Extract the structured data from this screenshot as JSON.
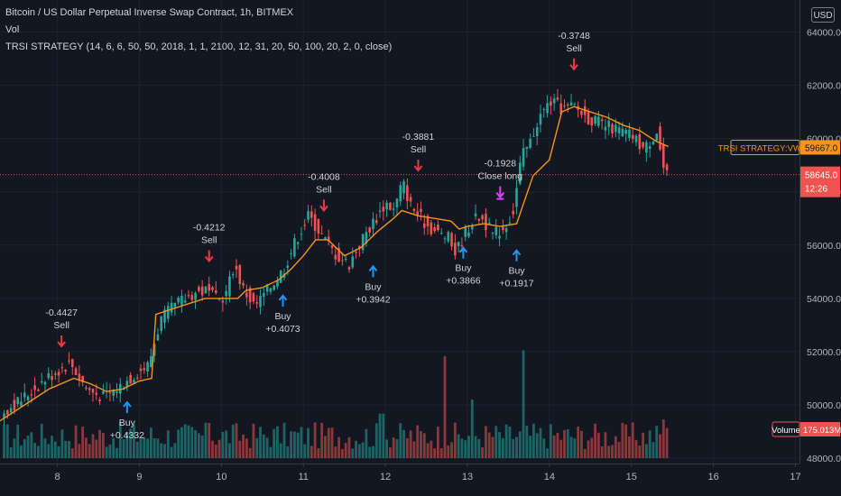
{
  "header": {
    "symbol_title": "Bitcoin / US Dollar Perpetual Inverse Swap Contract, 1h, BITMEX",
    "volume_label": "Vol",
    "strategy_label": "TRSI STRATEGY (14, 6, 6, 50, 50, 2018, 1, 1, 2100, 12, 31, 20, 50, 100, 20, 2, 0, close)",
    "currency_button": "USD"
  },
  "price_tags": {
    "vwap_label": "TRSI STRATEGY:VWAP",
    "vwap_value": "59667.0",
    "last_price": "58645.0",
    "countdown": "12:26",
    "volume_label": "Volume",
    "volume_value": "175.013M"
  },
  "colors": {
    "background": "#131722",
    "up": "#26a69a",
    "down": "#ef5350",
    "vwap": "#f7931a",
    "buy_arrow": "#2196f3",
    "sell_arrow": "#f23645",
    "close_arrow": "#e040fb"
  },
  "chart_data": {
    "type": "candlestick",
    "x_ticks": [
      "8",
      "9",
      "10",
      "11",
      "12",
      "13",
      "14",
      "15",
      "16",
      "17"
    ],
    "x_ticks_day": [
      8,
      9,
      10,
      11,
      12,
      13,
      14,
      15,
      16,
      17
    ],
    "y_ticks": [
      "48000.0",
      "50000.0",
      "52000.0",
      "54000.0",
      "56000.0",
      "58000.0",
      "60000.0",
      "62000.0",
      "64000.0"
    ],
    "y_tick_values": [
      48000,
      50000,
      52000,
      54000,
      56000,
      58000,
      60000,
      62000,
      64000
    ],
    "ylim": [
      47800,
      65200
    ],
    "xlim": [
      7.3,
      17.05
    ],
    "last_price": 58645,
    "vwap_value": 59667,
    "price_path": [
      [
        7.3,
        49600
      ],
      [
        7.6,
        50200
      ],
      [
        7.9,
        51000
      ],
      [
        8.2,
        51600
      ],
      [
        8.4,
        50600
      ],
      [
        8.6,
        50300
      ],
      [
        8.8,
        50700
      ],
      [
        9.0,
        51200
      ],
      [
        9.15,
        51500
      ],
      [
        9.3,
        53200
      ],
      [
        9.5,
        53800
      ],
      [
        9.7,
        54200
      ],
      [
        9.85,
        54300
      ],
      [
        10.0,
        53900
      ],
      [
        10.1,
        54200
      ],
      [
        10.2,
        55300
      ],
      [
        10.3,
        54400
      ],
      [
        10.45,
        53700
      ],
      [
        10.6,
        54300
      ],
      [
        10.8,
        55100
      ],
      [
        10.95,
        56200
      ],
      [
        11.1,
        57100
      ],
      [
        11.2,
        56700
      ],
      [
        11.3,
        56200
      ],
      [
        11.45,
        55600
      ],
      [
        11.6,
        55300
      ],
      [
        11.75,
        56200
      ],
      [
        11.9,
        56900
      ],
      [
        12.05,
        57600
      ],
      [
        12.15,
        57300
      ],
      [
        12.25,
        58400
      ],
      [
        12.35,
        57500
      ],
      [
        12.5,
        56900
      ],
      [
        12.65,
        56500
      ],
      [
        12.8,
        56300
      ],
      [
        12.9,
        55700
      ],
      [
        13.0,
        56400
      ],
      [
        13.1,
        56900
      ],
      [
        13.2,
        57100
      ],
      [
        13.35,
        56400
      ],
      [
        13.5,
        56700
      ],
      [
        13.6,
        57300
      ],
      [
        13.7,
        59300
      ],
      [
        13.8,
        59800
      ],
      [
        13.9,
        60700
      ],
      [
        14.05,
        61400
      ],
      [
        14.2,
        61100
      ],
      [
        14.35,
        61200
      ],
      [
        14.5,
        60800
      ],
      [
        14.7,
        60500
      ],
      [
        14.9,
        60300
      ],
      [
        15.05,
        60100
      ],
      [
        15.2,
        59600
      ],
      [
        15.35,
        60300
      ],
      [
        15.45,
        58600
      ]
    ],
    "vwap_path": [
      [
        7.3,
        49400
      ],
      [
        7.6,
        50000
      ],
      [
        7.9,
        50600
      ],
      [
        8.2,
        51000
      ],
      [
        8.4,
        50800
      ],
      [
        8.6,
        50500
      ],
      [
        8.8,
        50600
      ],
      [
        9.0,
        50900
      ],
      [
        9.15,
        51000
      ],
      [
        9.2,
        53400
      ],
      [
        9.5,
        53700
      ],
      [
        9.8,
        54000
      ],
      [
        10.0,
        54000
      ],
      [
        10.2,
        54000
      ],
      [
        10.3,
        54300
      ],
      [
        10.5,
        54400
      ],
      [
        10.7,
        54700
      ],
      [
        10.85,
        55100
      ],
      [
        11.0,
        55600
      ],
      [
        11.15,
        56200
      ],
      [
        11.3,
        56200
      ],
      [
        11.5,
        55600
      ],
      [
        11.7,
        55900
      ],
      [
        11.9,
        56500
      ],
      [
        12.1,
        57000
      ],
      [
        12.2,
        57300
      ],
      [
        12.4,
        57100
      ],
      [
        12.6,
        57000
      ],
      [
        12.8,
        56900
      ],
      [
        12.9,
        56600
      ],
      [
        13.0,
        56700
      ],
      [
        13.2,
        56800
      ],
      [
        13.4,
        56700
      ],
      [
        13.6,
        56800
      ],
      [
        13.8,
        58600
      ],
      [
        14.0,
        59200
      ],
      [
        14.15,
        61000
      ],
      [
        14.3,
        61200
      ],
      [
        14.5,
        61000
      ],
      [
        14.7,
        60800
      ],
      [
        14.9,
        60500
      ],
      [
        15.1,
        60300
      ],
      [
        15.3,
        59900
      ],
      [
        15.45,
        59700
      ]
    ],
    "volume_spikes": [
      [
        12.73,
        0.87
      ],
      [
        13.67,
        0.92
      ],
      [
        13.07,
        0.5
      ],
      [
        11.95,
        0.38
      ],
      [
        15.4,
        0.33
      ],
      [
        8.9,
        0.25
      ],
      [
        9.85,
        0.3
      ]
    ],
    "trades": [
      {
        "kind": "sell",
        "day": 8.05,
        "price": 52200,
        "lines": [
          "-0.4427",
          "Sell"
        ]
      },
      {
        "kind": "buy",
        "day": 8.85,
        "price": 50100,
        "lines": [
          "Buy",
          "+0.4332"
        ]
      },
      {
        "kind": "sell",
        "day": 9.85,
        "price": 55400,
        "lines": [
          "-0.4212",
          "Sell"
        ]
      },
      {
        "kind": "buy",
        "day": 10.75,
        "price": 54100,
        "lines": [
          "Buy",
          "+0.4073"
        ]
      },
      {
        "kind": "sell",
        "day": 11.25,
        "price": 57300,
        "lines": [
          "-0.4008",
          "Sell"
        ]
      },
      {
        "kind": "buy",
        "day": 11.85,
        "price": 55200,
        "lines": [
          "Buy",
          "+0.3942"
        ]
      },
      {
        "kind": "sell",
        "day": 12.4,
        "price": 58800,
        "lines": [
          "-0.3881",
          "Sell"
        ]
      },
      {
        "kind": "buy",
        "day": 12.95,
        "price": 55900,
        "lines": [
          "Buy",
          "+0.3866"
        ]
      },
      {
        "kind": "close",
        "day": 13.4,
        "price": 57800,
        "lines": [
          "-0.1928",
          "Close long"
        ]
      },
      {
        "kind": "buy",
        "day": 13.6,
        "price": 55800,
        "lines": [
          "Buy",
          "+0.1917"
        ]
      },
      {
        "kind": "sell",
        "day": 14.3,
        "price": 62600,
        "lines": [
          "-0.3748",
          "Sell"
        ]
      }
    ]
  }
}
